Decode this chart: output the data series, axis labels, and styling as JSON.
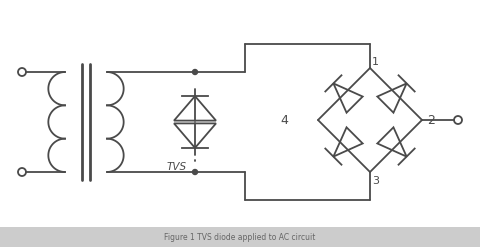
{
  "title": "Figure 1 TVS diode applied to AC circuit",
  "bg_color": "#ffffff",
  "line_color": "#4a4a4a",
  "text_color": "#4a4a4a",
  "figsize": [
    4.8,
    2.47
  ],
  "dpi": 100,
  "node1_label": "1",
  "node2_label": "2",
  "node3_label": "3",
  "node4_label": "4",
  "tvs_label": "TVS"
}
